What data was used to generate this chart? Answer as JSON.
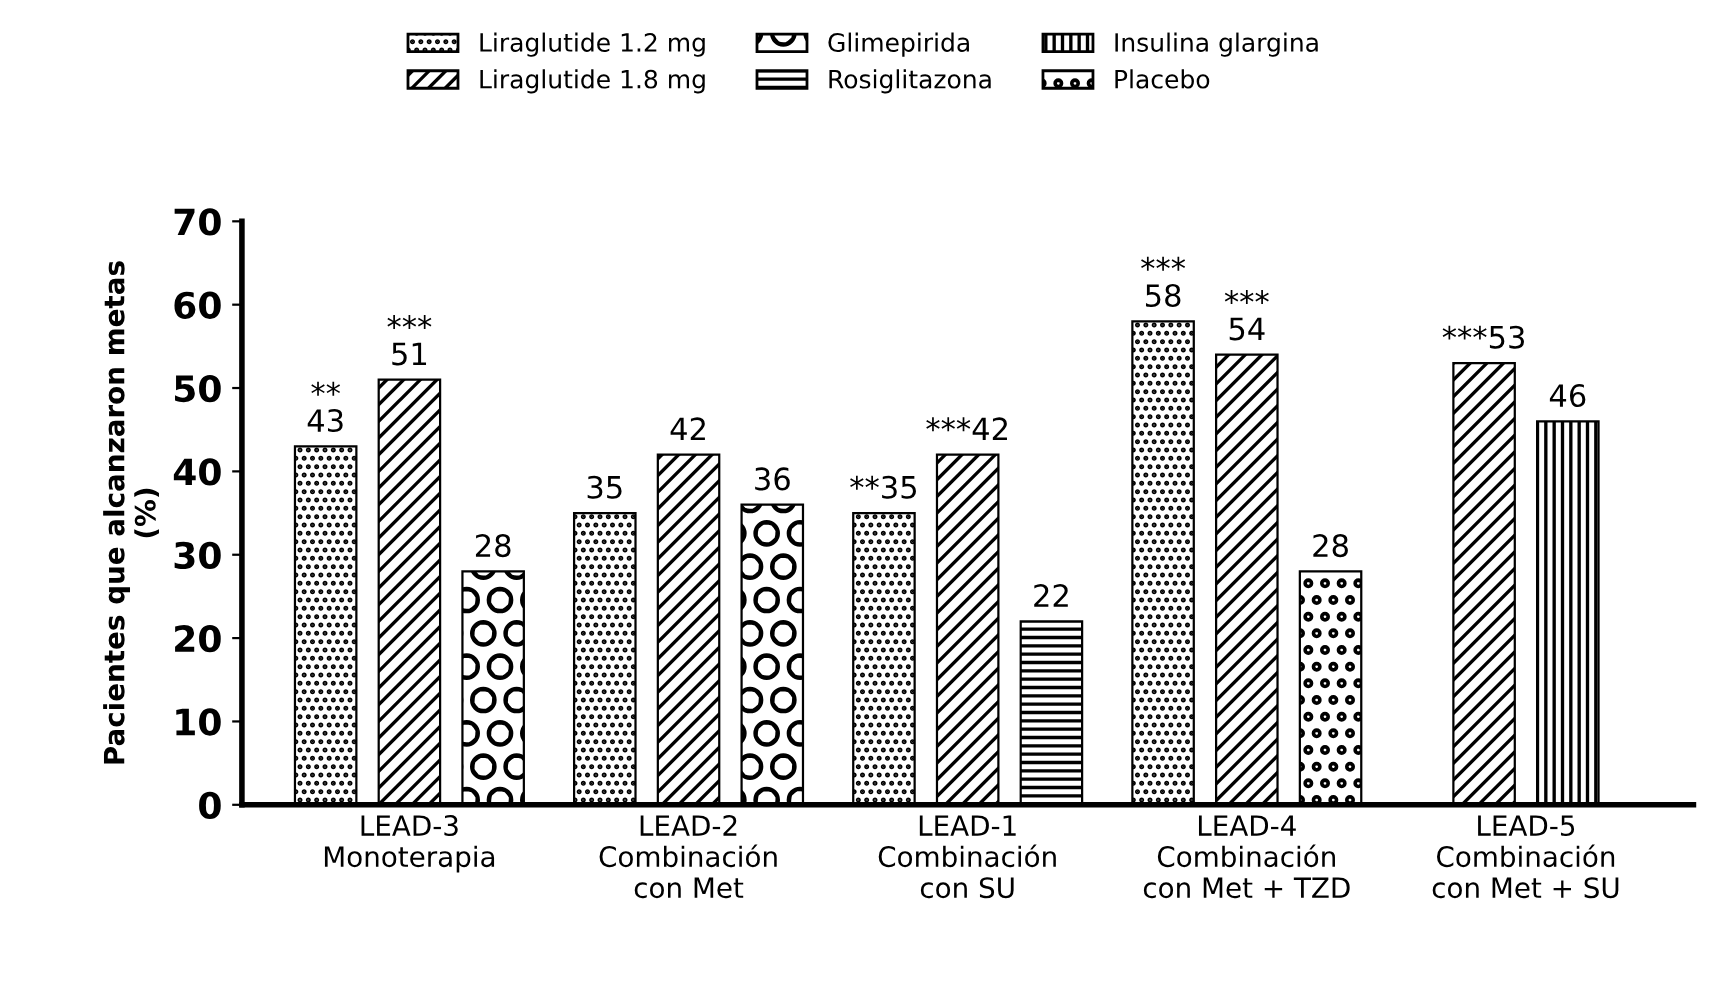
{
  "chart_data": {
    "type": "bar",
    "ylabel": "Pacientes que alcanzaron metas\n(%)",
    "categories": [
      "LEAD-3\nMonoterapia",
      "LEAD-2\nCombinación\ncon Met",
      "LEAD-1\nCombinación\ncon SU",
      "LEAD-4\nCombinación\ncon Met + TZD",
      "LEAD-5\nCombinación\ncon Met + SU"
    ],
    "series": [
      {
        "name": "Liraglutide 1.2 mg",
        "color": "#000000",
        "values": [
          43,
          35,
          35,
          58,
          null
        ],
        "value_labels": [
          "**\n43",
          "35",
          "**35",
          "***\n58",
          null
        ]
      },
      {
        "name": "Liraglutide 1.8 mg",
        "color": "#000000",
        "values": [
          51,
          42,
          42,
          54,
          53
        ],
        "value_labels": [
          "***\n51",
          "42",
          "***42",
          "***\n54",
          "***53"
        ]
      },
      {
        "name": "Glimepirida",
        "color": "#000000",
        "values": [
          28,
          36,
          null,
          null,
          null
        ],
        "value_labels": [
          "28",
          "36",
          null,
          null,
          null
        ]
      },
      {
        "name": "Rosiglitazona",
        "color": "#000000",
        "values": [
          null,
          null,
          22,
          null,
          null
        ],
        "value_labels": [
          null,
          null,
          "22",
          null,
          null
        ]
      },
      {
        "name": "Insulina glargina",
        "color": "#000000",
        "values": [
          null,
          null,
          null,
          null,
          46
        ],
        "value_labels": [
          null,
          null,
          null,
          null,
          "46"
        ]
      },
      {
        "name": "Placebo",
        "color": "#000000",
        "values": [
          null,
          null,
          null,
          28,
          null
        ],
        "value_labels": [
          null,
          null,
          null,
          "28",
          null
        ]
      }
    ],
    "ylim": [
      0,
      70
    ],
    "yticks": [
      0,
      10,
      20,
      30,
      40,
      50,
      60,
      70
    ],
    "grid": false,
    "legend": "top"
  }
}
